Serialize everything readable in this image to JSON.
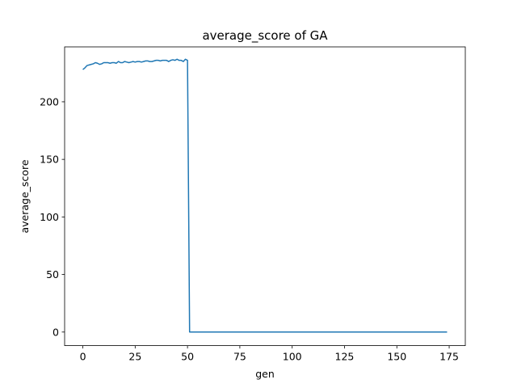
{
  "chart_data": {
    "type": "line",
    "title": "average_score of GA",
    "xlabel": "gen",
    "ylabel": "average_score",
    "xlim": [
      -8.7,
      182.7
    ],
    "ylim": [
      -11.8,
      247.7
    ],
    "xticks": [
      0,
      25,
      50,
      75,
      100,
      125,
      150,
      175
    ],
    "yticks": [
      0,
      50,
      100,
      150,
      200
    ],
    "grid": false,
    "series": [
      {
        "color": "#1f77b4",
        "x": [
          0,
          1,
          2,
          3,
          4,
          5,
          6,
          7,
          8,
          9,
          10,
          11,
          12,
          13,
          14,
          15,
          16,
          17,
          18,
          19,
          20,
          21,
          22,
          23,
          24,
          25,
          26,
          27,
          28,
          29,
          30,
          31,
          32,
          33,
          34,
          35,
          36,
          37,
          38,
          39,
          40,
          41,
          42,
          43,
          44,
          45,
          46,
          47,
          48,
          49,
          50,
          51,
          174
        ],
        "y": [
          228,
          229.5,
          231.5,
          232,
          232.5,
          233,
          234,
          233.5,
          232.5,
          233,
          234,
          234,
          234,
          233.5,
          234,
          234,
          233.5,
          235,
          234,
          234,
          235,
          234.5,
          234,
          234.5,
          235,
          234.5,
          235,
          235,
          234.5,
          235,
          235.5,
          235.5,
          235,
          235,
          235.5,
          236,
          236,
          235.5,
          236,
          236,
          236,
          235,
          236,
          236.5,
          236,
          237,
          236,
          236,
          235,
          237,
          236,
          0,
          0
        ]
      }
    ]
  }
}
